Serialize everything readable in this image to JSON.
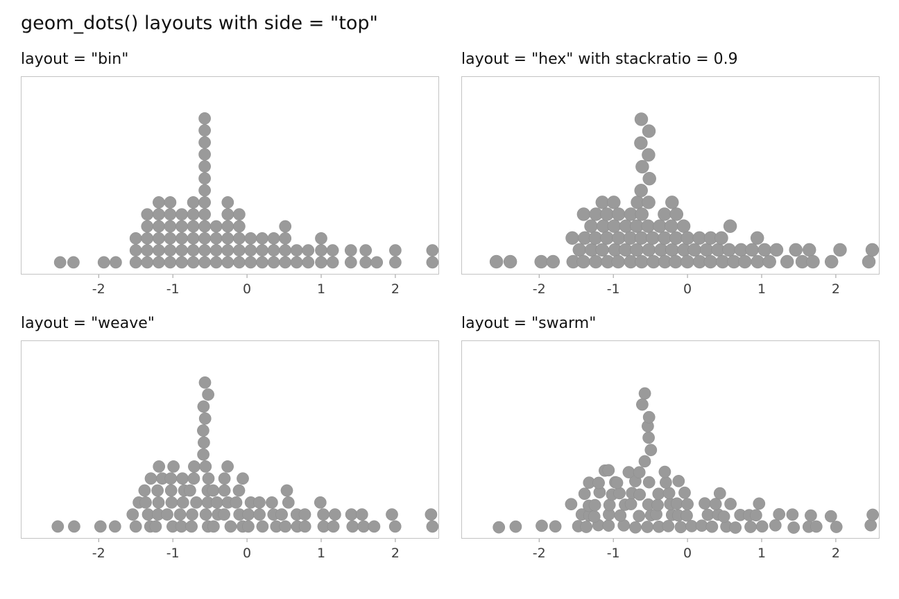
{
  "page": {
    "title": "geom_dots() layouts with side = \"top\""
  },
  "chart_data": {
    "type": "scatter",
    "variant": "dotplot-grid",
    "title": "geom_dots() layouts with side = \"top\"",
    "side": "top",
    "grid": "off",
    "legend": "none",
    "dot_color": "#9a9a9a",
    "dot_stroke": "#8c8c8c",
    "panel_border": "#c3c3c3",
    "text_color": "#111111",
    "tick_color": "#3d3d3d",
    "xlim": [
      -3.05,
      2.59
    ],
    "x_ticks": [
      -2,
      -1,
      0,
      1,
      2
    ],
    "xlabel": "",
    "ylabel": "",
    "binwidth": 0.16,
    "bins": [
      [
        -2.52,
        1
      ],
      [
        -2.34,
        1
      ],
      [
        -1.93,
        1
      ],
      [
        -1.77,
        1
      ],
      [
        -1.5,
        3
      ],
      [
        -1.345,
        5
      ],
      [
        -1.19,
        6
      ],
      [
        -1.035,
        6
      ],
      [
        -0.88,
        5
      ],
      [
        -0.725,
        6
      ],
      [
        -0.57,
        13
      ],
      [
        -0.415,
        4
      ],
      [
        -0.26,
        6
      ],
      [
        -0.105,
        5
      ],
      [
        0.05,
        3
      ],
      [
        0.205,
        3
      ],
      [
        0.36,
        3
      ],
      [
        0.515,
        4
      ],
      [
        0.67,
        2
      ],
      [
        0.825,
        2
      ],
      [
        1.0,
        3
      ],
      [
        1.155,
        2
      ],
      [
        1.4,
        2
      ],
      [
        1.6,
        2
      ],
      [
        1.75,
        1
      ],
      [
        2.0,
        2
      ],
      [
        2.5,
        2
      ]
    ],
    "panels": [
      {
        "layout": "bin",
        "title": "layout = \"bin\"",
        "stackratio": 1,
        "dot_scale": 1
      },
      {
        "layout": "hex",
        "title": "layout = \"hex\" with stackratio = 0.9",
        "stackratio": 0.9,
        "dot_scale": 1.1
      },
      {
        "layout": "weave",
        "title": "layout = \"weave\"",
        "stackratio": 1,
        "dot_scale": 1
      },
      {
        "layout": "swarm",
        "title": "layout = \"swarm\"",
        "stackratio": 1,
        "dot_scale": 1
      }
    ]
  }
}
